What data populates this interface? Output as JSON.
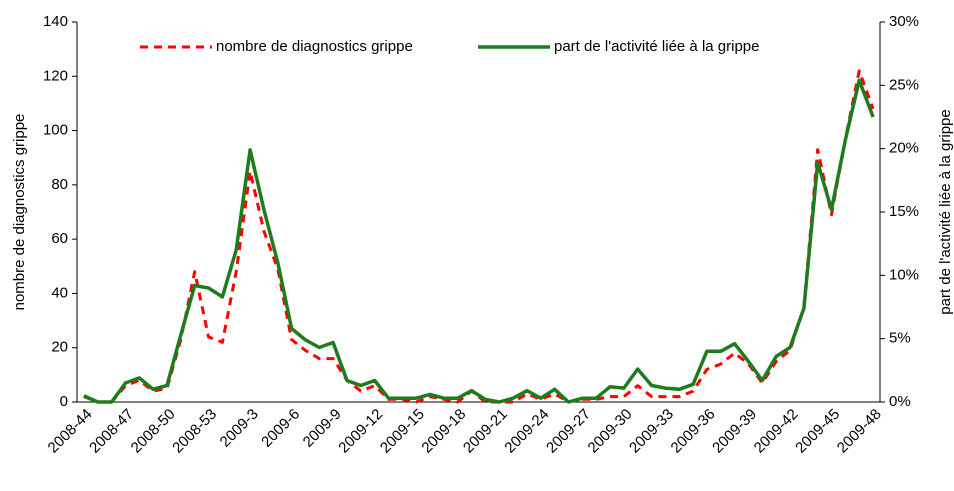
{
  "chart_data": {
    "type": "line",
    "y_label": "nombre de diagnostics grippe",
    "y2_label": "part de l'activité liée à la grippe",
    "categories": [
      "2008-44",
      null,
      null,
      "2008-47",
      null,
      null,
      "2008-50",
      null,
      null,
      "2008-53",
      null,
      null,
      "2009-3",
      null,
      null,
      "2009-6",
      null,
      null,
      "2009-9",
      null,
      null,
      "2009-12",
      null,
      null,
      "2009-15",
      null,
      null,
      "2009-18",
      null,
      null,
      "2009-21",
      null,
      null,
      "2009-24",
      null,
      null,
      "2009-27",
      null,
      null,
      "2009-30",
      null,
      null,
      "2009-33",
      null,
      null,
      "2009-36",
      null,
      null,
      "2009-39",
      null,
      null,
      "2009-42",
      null,
      null,
      "2009-45",
      null,
      null,
      "2009-48"
    ],
    "series": [
      {
        "name": "nombre de diagnostics grippe",
        "color": "#ff0000",
        "dashed": true,
        "values": [
          2,
          0,
          0,
          6,
          8,
          4,
          5,
          23,
          48,
          24,
          22,
          48,
          85,
          63,
          49,
          23,
          19,
          16,
          16,
          8,
          4,
          6,
          1,
          1,
          0,
          2,
          1,
          0,
          4,
          0,
          0,
          0,
          3,
          1,
          3,
          0,
          1,
          1,
          2,
          2,
          6,
          2,
          2,
          2,
          4,
          12,
          14,
          18,
          14,
          7,
          15,
          19,
          35,
          93,
          69,
          97,
          122,
          108
        ]
      },
      {
        "name": "part de l'activité liée à la grippe",
        "color": "#1e7b1e",
        "axis": "y2",
        "values": [
          0.5,
          0,
          0,
          1.5,
          1.9,
          1.0,
          1.3,
          5.3,
          9.2,
          9.0,
          8.3,
          12.0,
          19.9,
          15.2,
          11.0,
          5.8,
          4.9,
          4.3,
          4.7,
          1.7,
          1.3,
          1.7,
          0.3,
          0.3,
          0.3,
          0.6,
          0.3,
          0.3,
          0.9,
          0.2,
          0,
          0.3,
          0.9,
          0.3,
          1.0,
          0,
          0.3,
          0.3,
          1.2,
          1.1,
          2.6,
          1.3,
          1.1,
          1.0,
          1.4,
          4.0,
          4.0,
          4.6,
          3.2,
          1.7,
          3.6,
          4.3,
          7.4,
          18.9,
          15.2,
          20.7,
          25.4,
          22.5
        ]
      }
    ],
    "ylim": [
      0,
      140
    ],
    "yticks": [
      0,
      20,
      40,
      60,
      80,
      100,
      120,
      140
    ],
    "y2lim": [
      0,
      30
    ],
    "y2ticks": [
      {
        "value": 0,
        "label": "0%"
      },
      {
        "value": 5,
        "label": "5%"
      },
      {
        "value": 10,
        "label": "10%"
      },
      {
        "value": 15,
        "label": "15%"
      },
      {
        "value": 20,
        "label": "20%"
      },
      {
        "value": 25,
        "label": "25%"
      },
      {
        "value": 30,
        "label": "30%"
      }
    ],
    "legend": "top",
    "grid": false
  }
}
